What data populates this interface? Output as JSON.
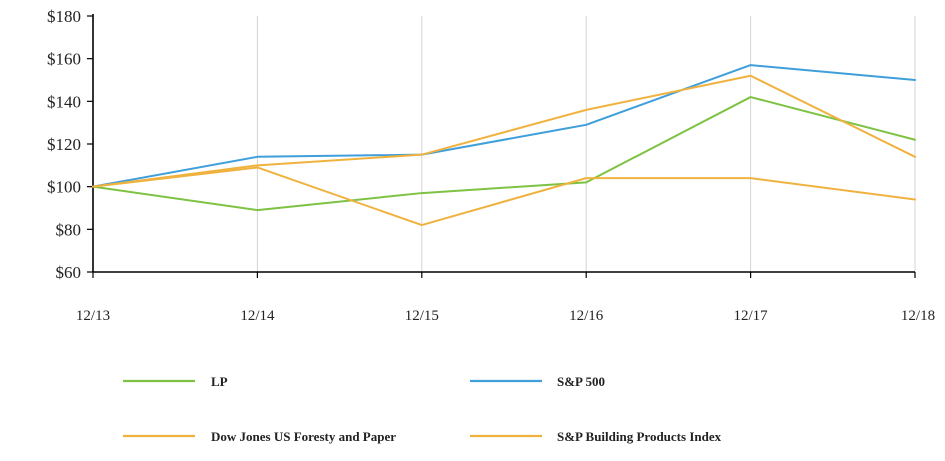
{
  "chart_data": {
    "type": "line",
    "title": "",
    "xlabel": "",
    "ylabel": "",
    "categories": [
      "12/13",
      "12/14",
      "12/15",
      "12/16",
      "12/17",
      "12/18"
    ],
    "ylim": [
      60,
      180
    ],
    "y_ticks": [
      60,
      80,
      100,
      120,
      140,
      160,
      180
    ],
    "y_tick_labels": [
      "$60",
      "$80",
      "$100",
      "$120",
      "$140",
      "$160",
      "$180"
    ],
    "grid": "vertical",
    "legend_position": "bottom",
    "series": [
      {
        "name": "LP",
        "color": "#7dc242",
        "values": [
          100,
          89,
          97,
          102,
          142,
          122
        ]
      },
      {
        "name": "S&P 500",
        "color": "#3f9fda",
        "values": [
          100,
          114,
          115,
          129,
          157,
          150
        ]
      },
      {
        "name": "Dow Jones US Foresty and Paper",
        "color": "#f0b23e",
        "values": [
          100,
          110,
          115,
          136,
          152,
          114
        ]
      },
      {
        "name": "S&P Building Products Index",
        "color": "#f0b23e",
        "values": [
          100,
          109,
          82,
          104,
          104,
          94
        ]
      }
    ]
  }
}
